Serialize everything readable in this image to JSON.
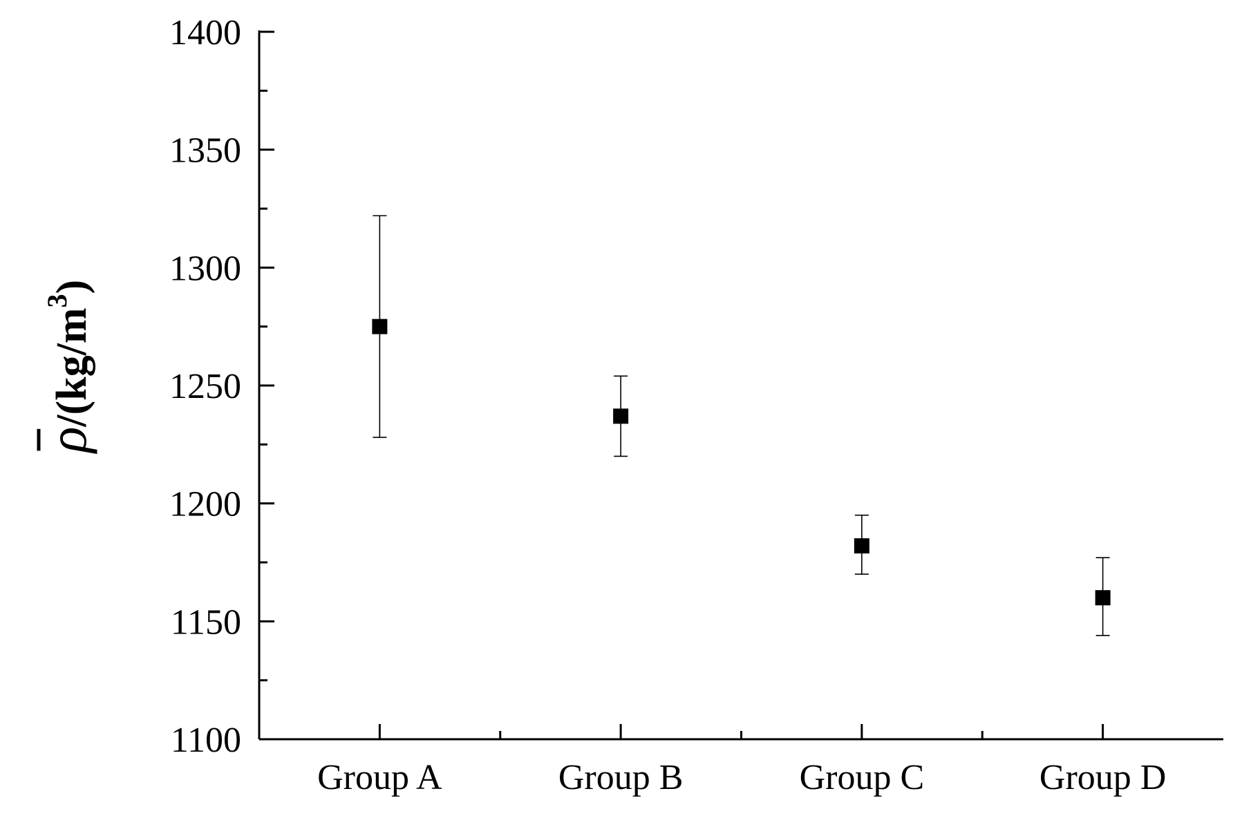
{
  "chart_data": {
    "type": "scatter",
    "title": "",
    "xlabel": "",
    "ylabel": {
      "symbol": "ρ",
      "unit": "/(kg/m",
      "unit_superscript": "3",
      "unit_close": ")"
    },
    "categories": [
      "Group A",
      "Group B",
      "Group C",
      "Group D"
    ],
    "series": [
      {
        "values": [
          1275,
          1237,
          1182,
          1160
        ],
        "error_lower": [
          1228,
          1220,
          1170,
          1144
        ],
        "error_upper": [
          1322,
          1254,
          1195,
          1177
        ]
      }
    ],
    "ylim": [
      1100,
      1400
    ],
    "yticks": [
      1100,
      1150,
      1200,
      1250,
      1300,
      1350,
      1400
    ],
    "grid": false,
    "legend": "none",
    "marker_color": "#000000"
  }
}
